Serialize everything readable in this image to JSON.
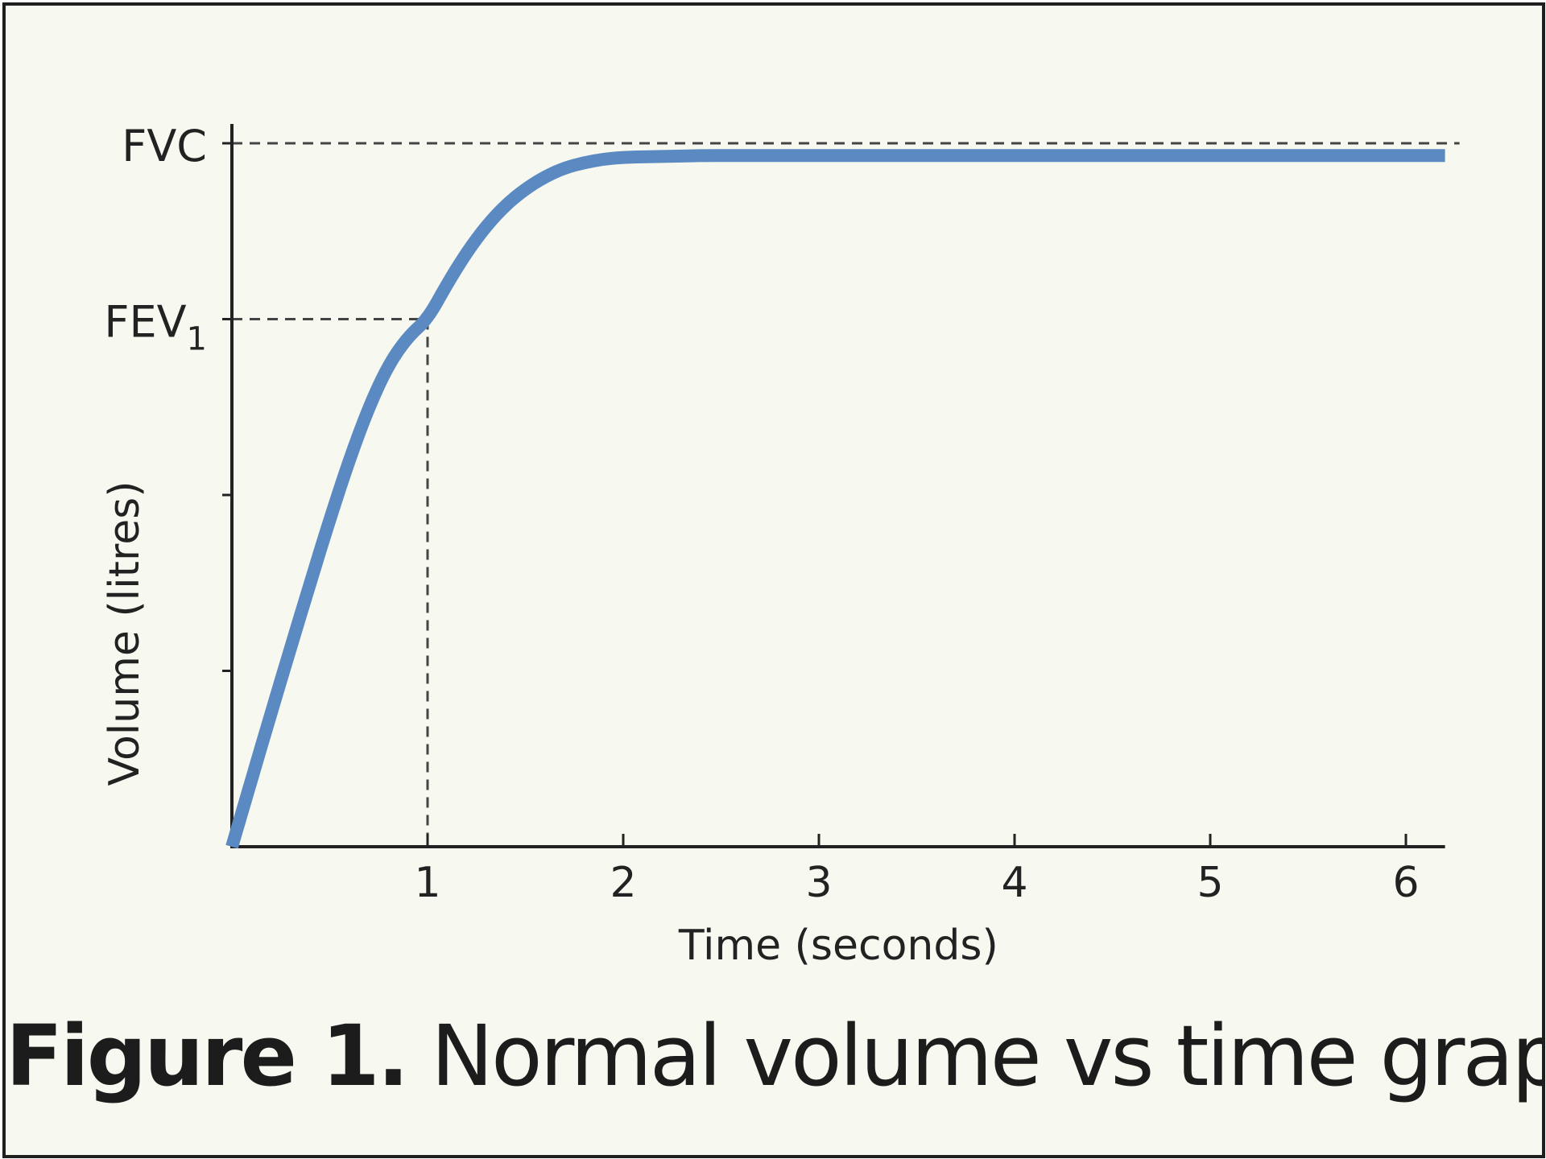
{
  "chart_data": {
    "type": "line",
    "title": "",
    "xlabel": "Time (seconds)",
    "ylabel": "Volume (litres)",
    "xlim": [
      0,
      6.2
    ],
    "ylim": [
      0,
      4
    ],
    "x_ticks": [
      1,
      2,
      3,
      4,
      5,
      6
    ],
    "x_tick_labels": [
      "1",
      "2",
      "3",
      "4",
      "5",
      "6"
    ],
    "y_ticks": [
      1,
      2,
      3,
      4
    ],
    "reference_lines": [
      {
        "label": "FVC",
        "axis": "y",
        "value": 4.0
      },
      {
        "label": "FEV",
        "label_subscript": "1",
        "axis": "y",
        "value": 3.0,
        "x_value": 1
      }
    ],
    "series": [
      {
        "color": "#5b8ac3",
        "x": [
          0,
          0.1,
          0.2,
          0.3,
          0.4,
          0.5,
          0.6,
          0.7,
          0.8,
          0.9,
          1.0,
          1.1,
          1.2,
          1.3,
          1.4,
          1.5,
          1.6,
          1.7,
          1.8,
          1.9,
          2.0,
          2.2,
          2.4,
          2.6,
          2.8,
          3.0,
          4.0,
          5.0,
          6.2
        ],
        "y": [
          0,
          0.38,
          0.76,
          1.13,
          1.5,
          1.86,
          2.2,
          2.5,
          2.74,
          2.9,
          3.0,
          3.2,
          3.38,
          3.53,
          3.65,
          3.74,
          3.81,
          3.86,
          3.89,
          3.91,
          3.92,
          3.925,
          3.93,
          3.93,
          3.93,
          3.93,
          3.93,
          3.93,
          3.93
        ]
      }
    ]
  },
  "caption": {
    "figure_label": "Figure 1.",
    "text": "Normal volume vs time graph"
  }
}
